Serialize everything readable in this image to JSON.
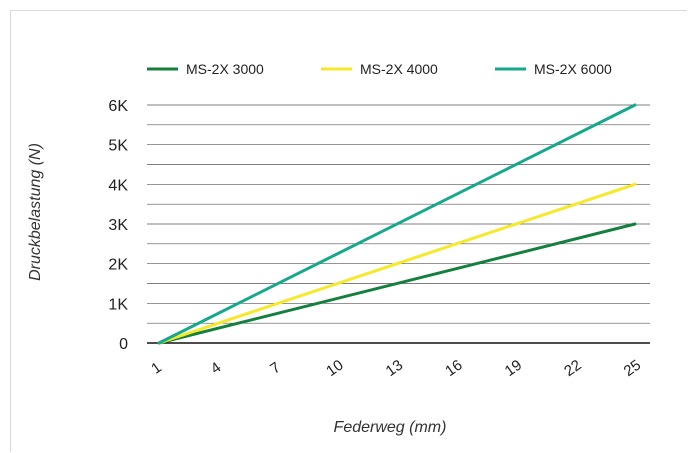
{
  "chart_data": {
    "type": "line",
    "xlabel": "Federweg (mm)",
    "ylabel": "Druckbelastung (N)",
    "x": [
      1,
      4,
      7,
      10,
      13,
      16,
      19,
      22,
      25
    ],
    "xlim": [
      1,
      25
    ],
    "ylim": [
      0,
      6000
    ],
    "y_ticks": [
      0,
      1000,
      2000,
      3000,
      4000,
      5000,
      6000
    ],
    "y_tick_labels": [
      "0",
      "1K",
      "2K",
      "3K",
      "4K",
      "5K",
      "6K"
    ],
    "grid": true,
    "legend_position": "top",
    "series": [
      {
        "name": "MS-2X 3000",
        "color": "#15803d",
        "points": [
          [
            1,
            0
          ],
          [
            25,
            3000
          ]
        ]
      },
      {
        "name": "MS-2X 4000",
        "color": "#f4ea2a",
        "points": [
          [
            1,
            0
          ],
          [
            25,
            4000
          ]
        ]
      },
      {
        "name": "MS-2X 6000",
        "color": "#14a98a",
        "points": [
          [
            1,
            0
          ],
          [
            25,
            6000
          ]
        ]
      }
    ]
  }
}
